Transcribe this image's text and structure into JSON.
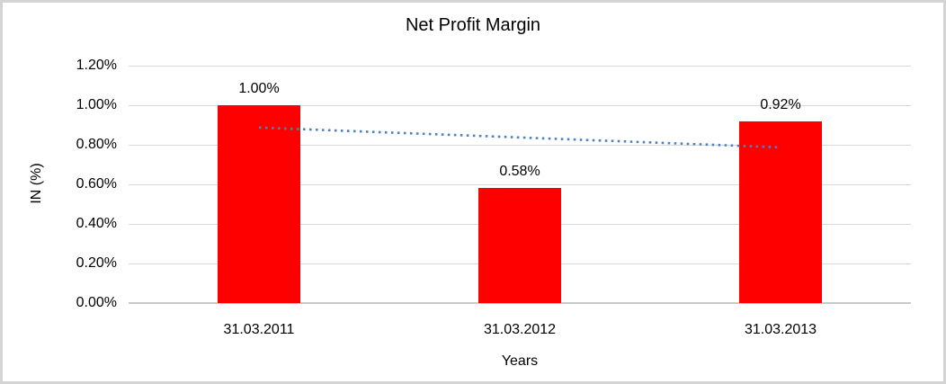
{
  "chart_data": {
    "type": "bar",
    "title": "Net Profit Margin",
    "xlabel": "Years",
    "ylabel": "IN (%)",
    "categories": [
      "31.03.2011",
      "31.03.2012",
      "31.03.2013"
    ],
    "series": [
      {
        "name": "Net Profit Margin",
        "color": "#ff0000",
        "values": [
          1.0,
          0.58,
          0.92
        ]
      }
    ],
    "data_labels": [
      "1.00%",
      "0.58%",
      "0.92%"
    ],
    "y_axis": {
      "min": 0,
      "max": 1.2,
      "ticks": [
        {
          "value": 0.0,
          "label": "0.00%"
        },
        {
          "value": 0.2,
          "label": "0.20%"
        },
        {
          "value": 0.4,
          "label": "0.40%"
        },
        {
          "value": 0.6,
          "label": "0.60%"
        },
        {
          "value": 0.8,
          "label": "0.80%"
        },
        {
          "value": 1.0,
          "label": "1.00%"
        },
        {
          "value": 1.2,
          "label": "1.20%"
        }
      ]
    },
    "grid": true,
    "legend": "none",
    "trendline": {
      "type": "linear",
      "style": "dotted",
      "color": "#4f81bd",
      "start_value": 0.887,
      "end_value": 0.787
    },
    "colors": {
      "bar": "#ff0000",
      "gridline": "#d9d9d9",
      "axis_line": "#c9c9c9",
      "text": "#000000",
      "background": "#ffffff",
      "frame_border": "#d4d4d4"
    }
  }
}
